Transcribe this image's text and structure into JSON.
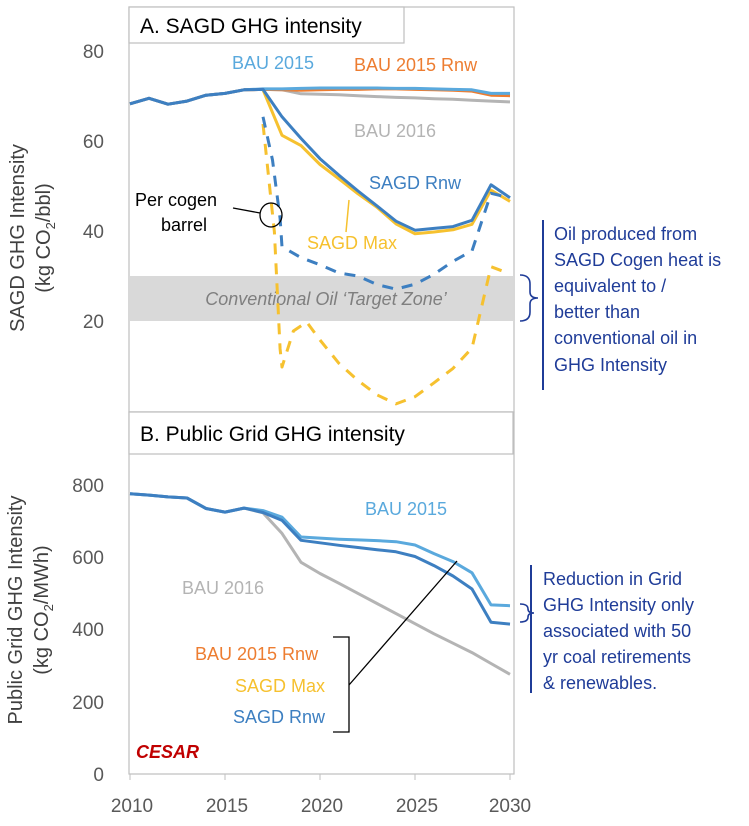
{
  "colors": {
    "bau2015": "#5aa9dd",
    "bau2015rnw": "#ed7d31",
    "bau2016": "#b4b4b4",
    "sagdmax": "#f6c12f",
    "sagdrnw": "#3d7fc1",
    "zone": "#d9d9d9",
    "annotation": "#1f3c98",
    "logo": "#c00000"
  },
  "logo": "CESAR",
  "x_ticks": [
    "2010",
    "2015",
    "2020",
    "2025",
    "2030"
  ],
  "annotations": {
    "oil_note": [
      "Oil produced from",
      "SAGD Cogen heat is",
      "equivalent to /",
      "better than",
      "conventional oil in",
      "GHG Intensity"
    ],
    "grid_note": [
      "Reduction in Grid",
      "GHG Intensity only",
      "associated with 50",
      "yr coal retirements",
      "& renewables."
    ]
  },
  "chart_data": [
    {
      "type": "line",
      "title": "A. SAGD GHG intensity",
      "ylabel": "SAGD GHG Intensity (kg CO₂/bbl)",
      "ylabel_lines": [
        "SAGD GHG Intensity",
        "(kg CO",
        "2",
        "/bbl)"
      ],
      "xlim": [
        2010,
        2030
      ],
      "ylim": [
        0,
        80
      ],
      "y_ticks": [
        "20",
        "40",
        "60",
        "80"
      ],
      "target_zone": {
        "range": [
          20,
          30
        ],
        "label": "Conventional Oil ‘Target Zone’"
      },
      "per_cogen_label": [
        "Per cogen",
        "barrel"
      ],
      "series": [
        {
          "name": "BAU 2016",
          "color_key": "bau2016",
          "dashed": false,
          "x": [
            2010,
            2011,
            2012,
            2013,
            2014,
            2015,
            2016,
            2017,
            2018,
            2019,
            2020,
            2021,
            2022,
            2023,
            2024,
            2025,
            2026,
            2027,
            2028,
            2029,
            2030
          ],
          "y": [
            68.5,
            69.7,
            68.4,
            69.1,
            70.4,
            70.8,
            71.6,
            71.7,
            71.6,
            70.7,
            70.6,
            70.5,
            70.3,
            70.1,
            69.9,
            69.8,
            69.6,
            69.5,
            69.3,
            69.1,
            68.9
          ]
        },
        {
          "name": "BAU 2015 Rnw",
          "color_key": "bau2015rnw",
          "dashed": false,
          "x": [
            2010,
            2011,
            2012,
            2013,
            2014,
            2015,
            2016,
            2017,
            2018,
            2019,
            2020,
            2021,
            2022,
            2023,
            2024,
            2025,
            2026,
            2027,
            2028,
            2029,
            2030
          ],
          "y": [
            68.5,
            69.7,
            68.4,
            69.1,
            70.4,
            70.8,
            71.6,
            71.7,
            71.6,
            71.5,
            71.6,
            71.7,
            71.7,
            71.8,
            71.8,
            71.7,
            71.6,
            71.5,
            71.3,
            70.4,
            70.3
          ]
        },
        {
          "name": "BAU 2015",
          "color_key": "bau2015",
          "dashed": false,
          "x": [
            2010,
            2011,
            2012,
            2013,
            2014,
            2015,
            2016,
            2017,
            2018,
            2019,
            2020,
            2021,
            2022,
            2023,
            2024,
            2025,
            2026,
            2027,
            2028,
            2029,
            2030
          ],
          "y": [
            68.5,
            69.7,
            68.4,
            69.1,
            70.4,
            70.8,
            71.6,
            71.8,
            71.8,
            71.9,
            72.0,
            72.0,
            72.0,
            72.0,
            71.9,
            71.9,
            71.8,
            71.7,
            71.6,
            70.8,
            70.8
          ]
        },
        {
          "name": "SAGD Max",
          "color_key": "sagdmax",
          "dashed": false,
          "x": [
            2017,
            2018,
            2019,
            2020,
            2021,
            2022,
            2023,
            2024,
            2025,
            2026,
            2027,
            2028,
            2029,
            2030
          ],
          "y": [
            71.6,
            61.5,
            59.2,
            55.0,
            51.8,
            48.5,
            45.5,
            41.8,
            39.6,
            40.0,
            40.5,
            41.7,
            49.3,
            46.8
          ]
        },
        {
          "name": "SAGD Rnw",
          "color_key": "sagdrnw",
          "dashed": false,
          "x": [
            2010,
            2011,
            2012,
            2013,
            2014,
            2015,
            2016,
            2017,
            2018,
            2019,
            2020,
            2021,
            2022,
            2023,
            2024,
            2025,
            2026,
            2027,
            2028,
            2029,
            2030
          ],
          "y": [
            68.5,
            69.7,
            68.4,
            69.1,
            70.4,
            70.8,
            71.6,
            71.7,
            65.6,
            60.8,
            56.3,
            52.6,
            49.1,
            45.8,
            42.4,
            40.4,
            40.8,
            41.2,
            42.6,
            50.5,
            47.6
          ]
        },
        {
          "name": "SAGD Max (per cogen barrel)",
          "color_key": "sagdmax",
          "dashed": true,
          "x": [
            2017,
            2017.6,
            2017.9,
            2018,
            2018.6,
            2019.3,
            2020,
            2021,
            2022,
            2023,
            2024,
            2025,
            2026,
            2027,
            2028,
            2029,
            2030
          ],
          "y": [
            64.0,
            40.0,
            14.0,
            10.0,
            18.0,
            20.0,
            16.0,
            10.8,
            7.0,
            3.8,
            1.8,
            3.4,
            6.5,
            9.7,
            14.2,
            32.3,
            30.7
          ]
        },
        {
          "name": "SAGD Rnw (per cogen barrel)",
          "color_key": "sagdrnw",
          "dashed": true,
          "x": [
            2017,
            2017.5,
            2017.9,
            2018,
            2019,
            2020,
            2021,
            2022,
            2023,
            2024,
            2025,
            2026,
            2027,
            2028,
            2029,
            2030
          ],
          "y": [
            65.6,
            56.0,
            43.0,
            36.7,
            34.3,
            32.7,
            30.9,
            30.2,
            28.3,
            27.3,
            28.4,
            30.6,
            33.5,
            35.8,
            48.6,
            47.6
          ]
        }
      ],
      "labels": [
        "BAU 2015",
        "BAU 2015 Rnw",
        "BAU 2016",
        "SAGD Rnw",
        "SAGD Max"
      ]
    },
    {
      "type": "line",
      "title": "B. Public Grid GHG intensity",
      "ylabel": "Public Grid GHG Intensity (kg CO₂/MWh)",
      "ylabel_lines": [
        "Public Grid GHG Intensity",
        "(kg CO",
        "2",
        "/MWh)"
      ],
      "xlim": [
        2010,
        2030
      ],
      "ylim": [
        0,
        800
      ],
      "y_ticks": [
        "0",
        "200",
        "400",
        "600",
        "800"
      ],
      "series": [
        {
          "name": "BAU 2016",
          "color_key": "bau2016",
          "dashed": false,
          "x": [
            2010,
            2011,
            2012,
            2013,
            2014,
            2015,
            2016,
            2017,
            2018,
            2019,
            2020,
            2021,
            2022,
            2023,
            2024,
            2025,
            2026,
            2027,
            2028,
            2029,
            2030
          ],
          "y": [
            776,
            772,
            767,
            764,
            735,
            725,
            736,
            723,
            666,
            586,
            555,
            528,
            500,
            472,
            444,
            416,
            388,
            362,
            336,
            306,
            276
          ]
        },
        {
          "name": "BAU 2015",
          "color_key": "bau2015",
          "dashed": false,
          "x": [
            2010,
            2011,
            2012,
            2013,
            2014,
            2015,
            2016,
            2017,
            2018,
            2019,
            2020,
            2021,
            2022,
            2023,
            2024,
            2025,
            2026,
            2027,
            2028,
            2029,
            2030
          ],
          "y": [
            776,
            772,
            767,
            764,
            735,
            725,
            736,
            729,
            711,
            656,
            653,
            650,
            648,
            646,
            643,
            634,
            610,
            588,
            557,
            468,
            466
          ]
        },
        {
          "name": "SAGD Rnw",
          "color_key": "sagdrnw",
          "dashed": false,
          "x": [
            2010,
            2011,
            2012,
            2013,
            2014,
            2015,
            2016,
            2017,
            2018,
            2019,
            2020,
            2021,
            2022,
            2023,
            2024,
            2025,
            2026,
            2027,
            2028,
            2029,
            2030
          ],
          "y": [
            776,
            772,
            767,
            764,
            735,
            725,
            736,
            724,
            702,
            647,
            640,
            633,
            627,
            621,
            615,
            602,
            577,
            548,
            512,
            420,
            415
          ]
        }
      ],
      "labels": [
        "BAU 2015",
        "BAU 2016",
        "BAU 2015 Rnw",
        "SAGD Max",
        "SAGD Rnw"
      ]
    }
  ]
}
